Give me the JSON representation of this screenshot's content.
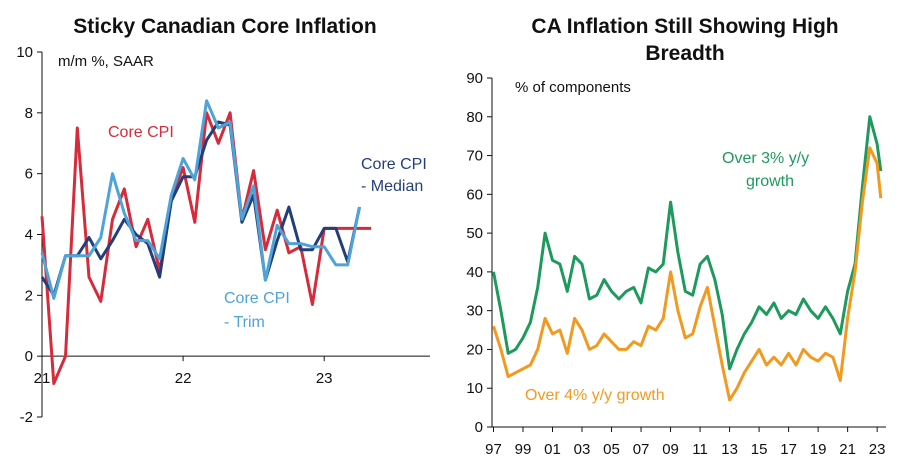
{
  "chart_data": [
    {
      "type": "line",
      "title": "Sticky Canadian Core Inflation",
      "ylabel": "m/m %, SAAR",
      "ylim": [
        -2,
        10
      ],
      "yticks": [
        -2,
        0,
        2,
        4,
        6,
        8,
        10
      ],
      "xlim": [
        2021.0,
        2023.75
      ],
      "xticks": [
        {
          "value": 2021.0,
          "label": "21"
        },
        {
          "value": 2022.0,
          "label": "22"
        },
        {
          "value": 2023.0,
          "label": "23"
        }
      ],
      "grid": false,
      "series": [
        {
          "name": "Core CPI",
          "color": "#d62b3a",
          "x": [
            2021.0,
            2021.0833,
            2021.1667,
            2021.25,
            2021.3333,
            2021.4167,
            2021.5,
            2021.5833,
            2021.6667,
            2021.75,
            2021.8333,
            2021.9167,
            2022.0,
            2022.0833,
            2022.1667,
            2022.25,
            2022.3333,
            2022.4167,
            2022.5,
            2022.5833,
            2022.6667,
            2022.75,
            2022.8333,
            2022.9167,
            2023.0,
            2023.0833,
            2023.1667,
            2023.25,
            2023.3333
          ],
          "y": [
            4.6,
            -0.9,
            0.0,
            7.5,
            2.6,
            1.8,
            4.5,
            5.5,
            3.6,
            4.5,
            2.8,
            5.2,
            6.2,
            4.4,
            8.0,
            7.0,
            8.0,
            4.5,
            6.1,
            3.5,
            4.8,
            3.4,
            3.6,
            1.7,
            4.2,
            4.2,
            4.2,
            4.2,
            4.2
          ]
        },
        {
          "name": "Core CPI - Median",
          "color": "#233f7b",
          "x": [
            2021.0,
            2021.0833,
            2021.1667,
            2021.25,
            2021.3333,
            2021.4167,
            2021.5,
            2021.5833,
            2021.6667,
            2021.75,
            2021.8333,
            2021.9167,
            2022.0,
            2022.0833,
            2022.1667,
            2022.25,
            2022.3333,
            2022.4167,
            2022.5,
            2022.5833,
            2022.6667,
            2022.75,
            2022.8333,
            2022.9167,
            2023.0,
            2023.0833,
            2023.1667,
            2023.25
          ],
          "y": [
            2.6,
            2.0,
            3.3,
            3.3,
            3.9,
            3.2,
            3.8,
            4.5,
            4.0,
            3.7,
            2.6,
            5.1,
            5.9,
            5.9,
            7.1,
            7.7,
            7.6,
            4.4,
            5.3,
            2.5,
            3.8,
            4.9,
            3.5,
            3.5,
            4.2,
            4.2,
            3.1,
            4.9
          ]
        },
        {
          "name": "Core CPI - Trim",
          "color": "#4ea3d8",
          "x": [
            2021.0,
            2021.0833,
            2021.1667,
            2021.25,
            2021.3333,
            2021.4167,
            2021.5,
            2021.5833,
            2021.6667,
            2021.75,
            2021.8333,
            2021.9167,
            2022.0,
            2022.0833,
            2022.1667,
            2022.25,
            2022.3333,
            2022.4167,
            2022.5,
            2022.5833,
            2022.6667,
            2022.75,
            2022.8333,
            2022.9167,
            2023.0,
            2023.0833,
            2023.1667,
            2023.25
          ],
          "y": [
            3.4,
            1.9,
            3.3,
            3.3,
            3.3,
            3.9,
            6.0,
            4.7,
            3.8,
            3.8,
            3.2,
            5.3,
            6.5,
            5.8,
            8.4,
            7.5,
            7.7,
            4.5,
            5.6,
            2.5,
            4.3,
            3.7,
            3.7,
            3.6,
            3.6,
            3.0,
            3.0,
            4.9
          ]
        }
      ],
      "labels": {
        "core": "Core CPI",
        "median_line1": "Core CPI",
        "median_line2": "- Median",
        "trim_line1": "Core CPI",
        "trim_line2": "- Trim"
      }
    },
    {
      "type": "line",
      "title": "CA Inflation Still Showing High Breadth",
      "ylabel": "% of components",
      "ylim": [
        0,
        90
      ],
      "yticks": [
        0,
        10,
        20,
        30,
        40,
        50,
        60,
        70,
        80,
        90
      ],
      "xlim": [
        1996.9,
        2023.6
      ],
      "xticks": [
        {
          "value": 1997,
          "label": "97"
        },
        {
          "value": 1999,
          "label": "99"
        },
        {
          "value": 2001,
          "label": "01"
        },
        {
          "value": 2003,
          "label": "03"
        },
        {
          "value": 2005,
          "label": "05"
        },
        {
          "value": 2007,
          "label": "07"
        },
        {
          "value": 2009,
          "label": "09"
        },
        {
          "value": 2011,
          "label": "11"
        },
        {
          "value": 2013,
          "label": "13"
        },
        {
          "value": 2015,
          "label": "15"
        },
        {
          "value": 2017,
          "label": "17"
        },
        {
          "value": 2019,
          "label": "19"
        },
        {
          "value": 2021,
          "label": "21"
        },
        {
          "value": 2023,
          "label": "23"
        }
      ],
      "grid": false,
      "series": [
        {
          "name": "Over 3% y/y growth",
          "label_line1": "Over 3% y/y",
          "label_line2": "growth",
          "color": "#1f9a5d",
          "x": [
            1997.0,
            1997.5,
            1998.0,
            1998.5,
            1999.0,
            1999.5,
            2000.0,
            2000.5,
            2001.0,
            2001.5,
            2002.0,
            2002.5,
            2003.0,
            2003.5,
            2004.0,
            2004.5,
            2005.0,
            2005.5,
            2006.0,
            2006.5,
            2007.0,
            2007.5,
            2008.0,
            2008.5,
            2009.0,
            2009.5,
            2010.0,
            2010.5,
            2011.0,
            2011.5,
            2012.0,
            2012.5,
            2013.0,
            2013.5,
            2014.0,
            2014.5,
            2015.0,
            2015.5,
            2016.0,
            2016.5,
            2017.0,
            2017.5,
            2018.0,
            2018.5,
            2019.0,
            2019.5,
            2020.0,
            2020.5,
            2021.0,
            2021.5,
            2022.0,
            2022.5,
            2023.0,
            2023.25
          ],
          "y": [
            40,
            30,
            19,
            20,
            23,
            27,
            36,
            50,
            43,
            42,
            35,
            44,
            42,
            33,
            34,
            38,
            35,
            33,
            35,
            36,
            32,
            41,
            40,
            42,
            58,
            45,
            35,
            34,
            42,
            44,
            38,
            29,
            15,
            20,
            24,
            27,
            31,
            29,
            32,
            28,
            30,
            29,
            33,
            30,
            28,
            31,
            28,
            24,
            35,
            42,
            62,
            80,
            73,
            66
          ]
        },
        {
          "name": "Over 4% y/y growth",
          "label": "Over 4% y/y growth",
          "color": "#f29a1f",
          "x": [
            1997.0,
            1997.5,
            1998.0,
            1998.5,
            1999.0,
            1999.5,
            2000.0,
            2000.5,
            2001.0,
            2001.5,
            2002.0,
            2002.5,
            2003.0,
            2003.5,
            2004.0,
            2004.5,
            2005.0,
            2005.5,
            2006.0,
            2006.5,
            2007.0,
            2007.5,
            2008.0,
            2008.5,
            2009.0,
            2009.5,
            2010.0,
            2010.5,
            2011.0,
            2011.5,
            2012.0,
            2012.5,
            2013.0,
            2013.5,
            2014.0,
            2014.5,
            2015.0,
            2015.5,
            2016.0,
            2016.5,
            2017.0,
            2017.5,
            2018.0,
            2018.5,
            2019.0,
            2019.5,
            2020.0,
            2020.5,
            2021.0,
            2021.5,
            2022.0,
            2022.5,
            2023.0,
            2023.25
          ],
          "y": [
            26,
            20,
            13,
            14,
            15,
            16,
            20,
            28,
            24,
            25,
            19,
            28,
            25,
            20,
            21,
            24,
            22,
            20,
            20,
            22,
            21,
            26,
            25,
            28,
            40,
            30,
            23,
            24,
            31,
            36,
            26,
            16,
            7,
            10,
            14,
            17,
            20,
            16,
            18,
            16,
            19,
            16,
            20,
            18,
            17,
            19,
            18,
            12,
            28,
            40,
            58,
            72,
            68,
            59
          ]
        }
      ]
    }
  ]
}
